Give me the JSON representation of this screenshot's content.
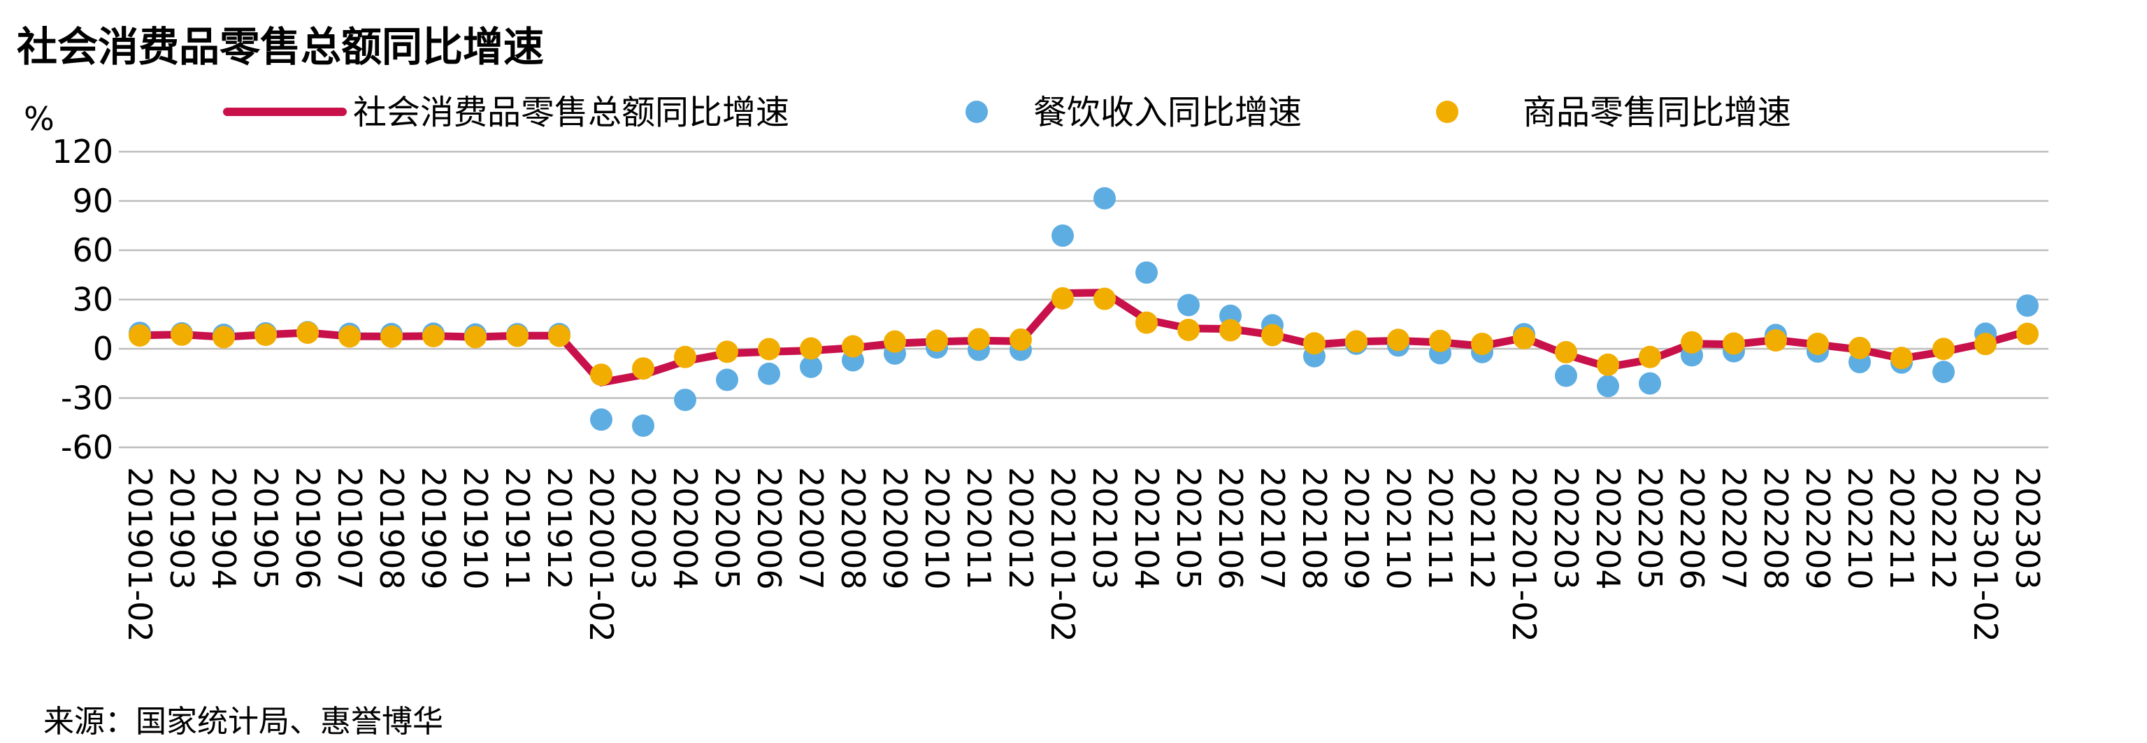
{
  "title": "社会消费品零售总额同比增速",
  "source": "来源：国家统计局、惠誉博华",
  "chart_data": {
    "type": "line",
    "title": "社会消费品零售总额同比增速",
    "ylabel": "%",
    "xlabel": "",
    "ylim": [
      -60,
      120
    ],
    "yticks": [
      120,
      90,
      60,
      30,
      0,
      -30,
      -60
    ],
    "grid": true,
    "legend_position": "top",
    "categories": [
      "201901-02",
      "201903",
      "201904",
      "201905",
      "201906",
      "201907",
      "201908",
      "201909",
      "201910",
      "201911",
      "201912",
      "202001-02",
      "202003",
      "202004",
      "202005",
      "202006",
      "202007",
      "202008",
      "202009",
      "202010",
      "202011",
      "202012",
      "202101-02",
      "202103",
      "202104",
      "202105",
      "202106",
      "202107",
      "202108",
      "202109",
      "202110",
      "202111",
      "202112",
      "202201-02",
      "202203",
      "202204",
      "202205",
      "202206",
      "202207",
      "202208",
      "202209",
      "202210",
      "202211",
      "202212",
      "202301-02",
      "202303"
    ],
    "series": [
      {
        "name": "社会消费品零售总额同比增速",
        "style": "line",
        "color": "#C8104A",
        "values": [
          8.2,
          8.7,
          7.2,
          8.6,
          9.8,
          7.6,
          7.5,
          7.8,
          7.2,
          8.0,
          8.0,
          -20.5,
          -15.8,
          -7.5,
          -2.8,
          -1.8,
          -1.1,
          0.5,
          3.3,
          4.3,
          5.0,
          4.6,
          33.8,
          34.2,
          17.7,
          12.4,
          12.1,
          8.5,
          2.5,
          4.4,
          4.9,
          3.9,
          1.7,
          6.7,
          -3.5,
          -11.1,
          -6.7,
          3.1,
          2.7,
          5.4,
          2.5,
          -0.5,
          -5.9,
          -1.8,
          3.5,
          10.6
        ]
      },
      {
        "name": "餐饮收入同比增速",
        "style": "scatter",
        "color": "#5DADE2",
        "values": [
          9.7,
          9.4,
          8.5,
          9.4,
          10.1,
          9.1,
          9.0,
          9.2,
          8.7,
          8.9,
          9.0,
          -43.1,
          -46.8,
          -31.1,
          -18.9,
          -15.2,
          -11.0,
          -7.0,
          -2.9,
          0.8,
          -0.6,
          -0.6,
          68.9,
          91.6,
          46.4,
          26.6,
          20.1,
          14.3,
          -4.5,
          3.1,
          2.0,
          -2.7,
          -2.0,
          8.9,
          -16.4,
          -22.7,
          -21.1,
          -4.0,
          -1.5,
          8.4,
          -1.7,
          -8.1,
          -8.4,
          -14.1,
          9.2,
          26.3
        ]
      },
      {
        "name": "商品零售同比增速",
        "style": "scatter",
        "color": "#F2AE00",
        "values": [
          8.1,
          8.6,
          7.1,
          8.5,
          9.8,
          7.5,
          7.4,
          7.7,
          7.1,
          7.9,
          7.9,
          -15.8,
          -12.0,
          -5.0,
          -1.8,
          -0.2,
          0.2,
          1.5,
          4.4,
          4.9,
          5.8,
          5.6,
          30.7,
          30.4,
          15.9,
          11.5,
          11.3,
          8.3,
          3.3,
          4.5,
          5.4,
          4.8,
          3.0,
          6.5,
          -2.1,
          -9.7,
          -5.0,
          3.9,
          3.2,
          5.1,
          3.0,
          0.5,
          -5.6,
          -0.1,
          2.9,
          9.1
        ]
      }
    ]
  }
}
